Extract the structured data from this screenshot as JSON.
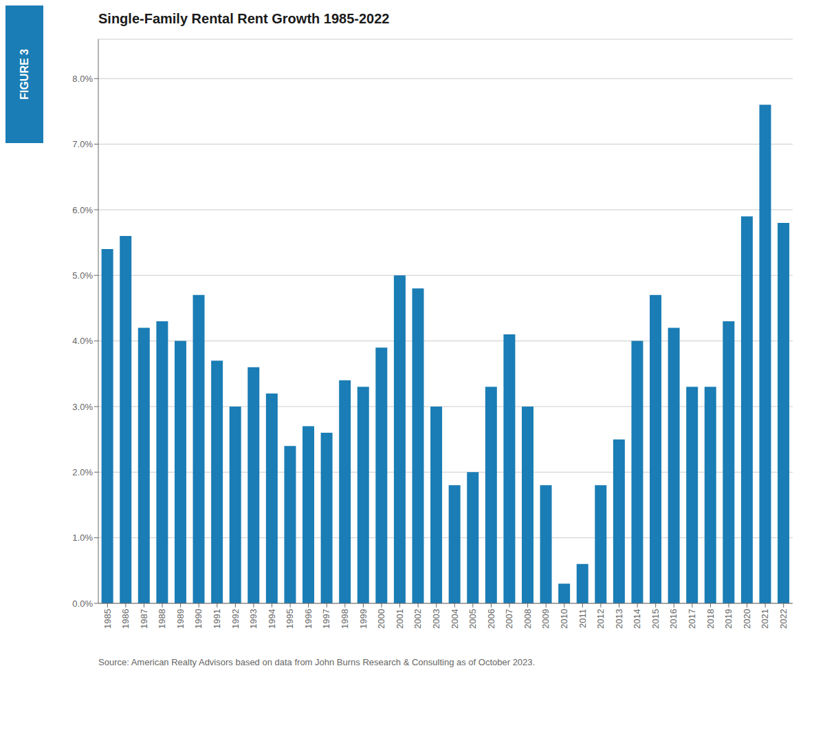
{
  "chart_data": {
    "type": "bar",
    "title": "Single-Family Rental Rent Growth 1985-2022",
    "annotations": [
      "FIGURE 3",
      "Source: American Realty Advisors based on data from John Burns Research & Consulting as of October 2023."
    ],
    "categories": [
      1985,
      1986,
      1987,
      1988,
      1989,
      1990,
      1991,
      1992,
      1993,
      1994,
      1995,
      1996,
      1997,
      1998,
      1999,
      2000,
      2001,
      2002,
      2003,
      2004,
      2005,
      2006,
      2007,
      2008,
      2009,
      2010,
      2011,
      2012,
      2013,
      2014,
      2015,
      2016,
      2017,
      2018,
      2019,
      2020,
      2021,
      2022
    ],
    "values": [
      0.054,
      0.056,
      0.042,
      0.043,
      0.04,
      0.047,
      0.037,
      0.03,
      0.036,
      0.032,
      0.024,
      0.027,
      0.026,
      0.034,
      0.033,
      0.039,
      0.05,
      0.048,
      0.03,
      0.018,
      0.02,
      0.033,
      0.041,
      0.03,
      0.018,
      0.003,
      0.006,
      0.018,
      0.025,
      0.04,
      0.047,
      0.042,
      0.033,
      0.033,
      0.043,
      0.059,
      0.076,
      0.058
    ],
    "color": "#1a7db5",
    "ylim": [
      0,
      0.086
    ],
    "yticks": [
      {
        "value": 0.0,
        "label": "0.0%"
      },
      {
        "value": 0.01,
        "label": "1.0%"
      },
      {
        "value": 0.02,
        "label": "2.0%"
      },
      {
        "value": 0.03,
        "label": "3.0%"
      },
      {
        "value": 0.04,
        "label": "4.0%"
      },
      {
        "value": 0.05,
        "label": "5.0%"
      },
      {
        "value": 0.06,
        "label": "6.0%"
      },
      {
        "value": 0.07,
        "label": "7.0%"
      },
      {
        "value": 0.08,
        "label": "8.0%"
      }
    ],
    "grid": true
  }
}
